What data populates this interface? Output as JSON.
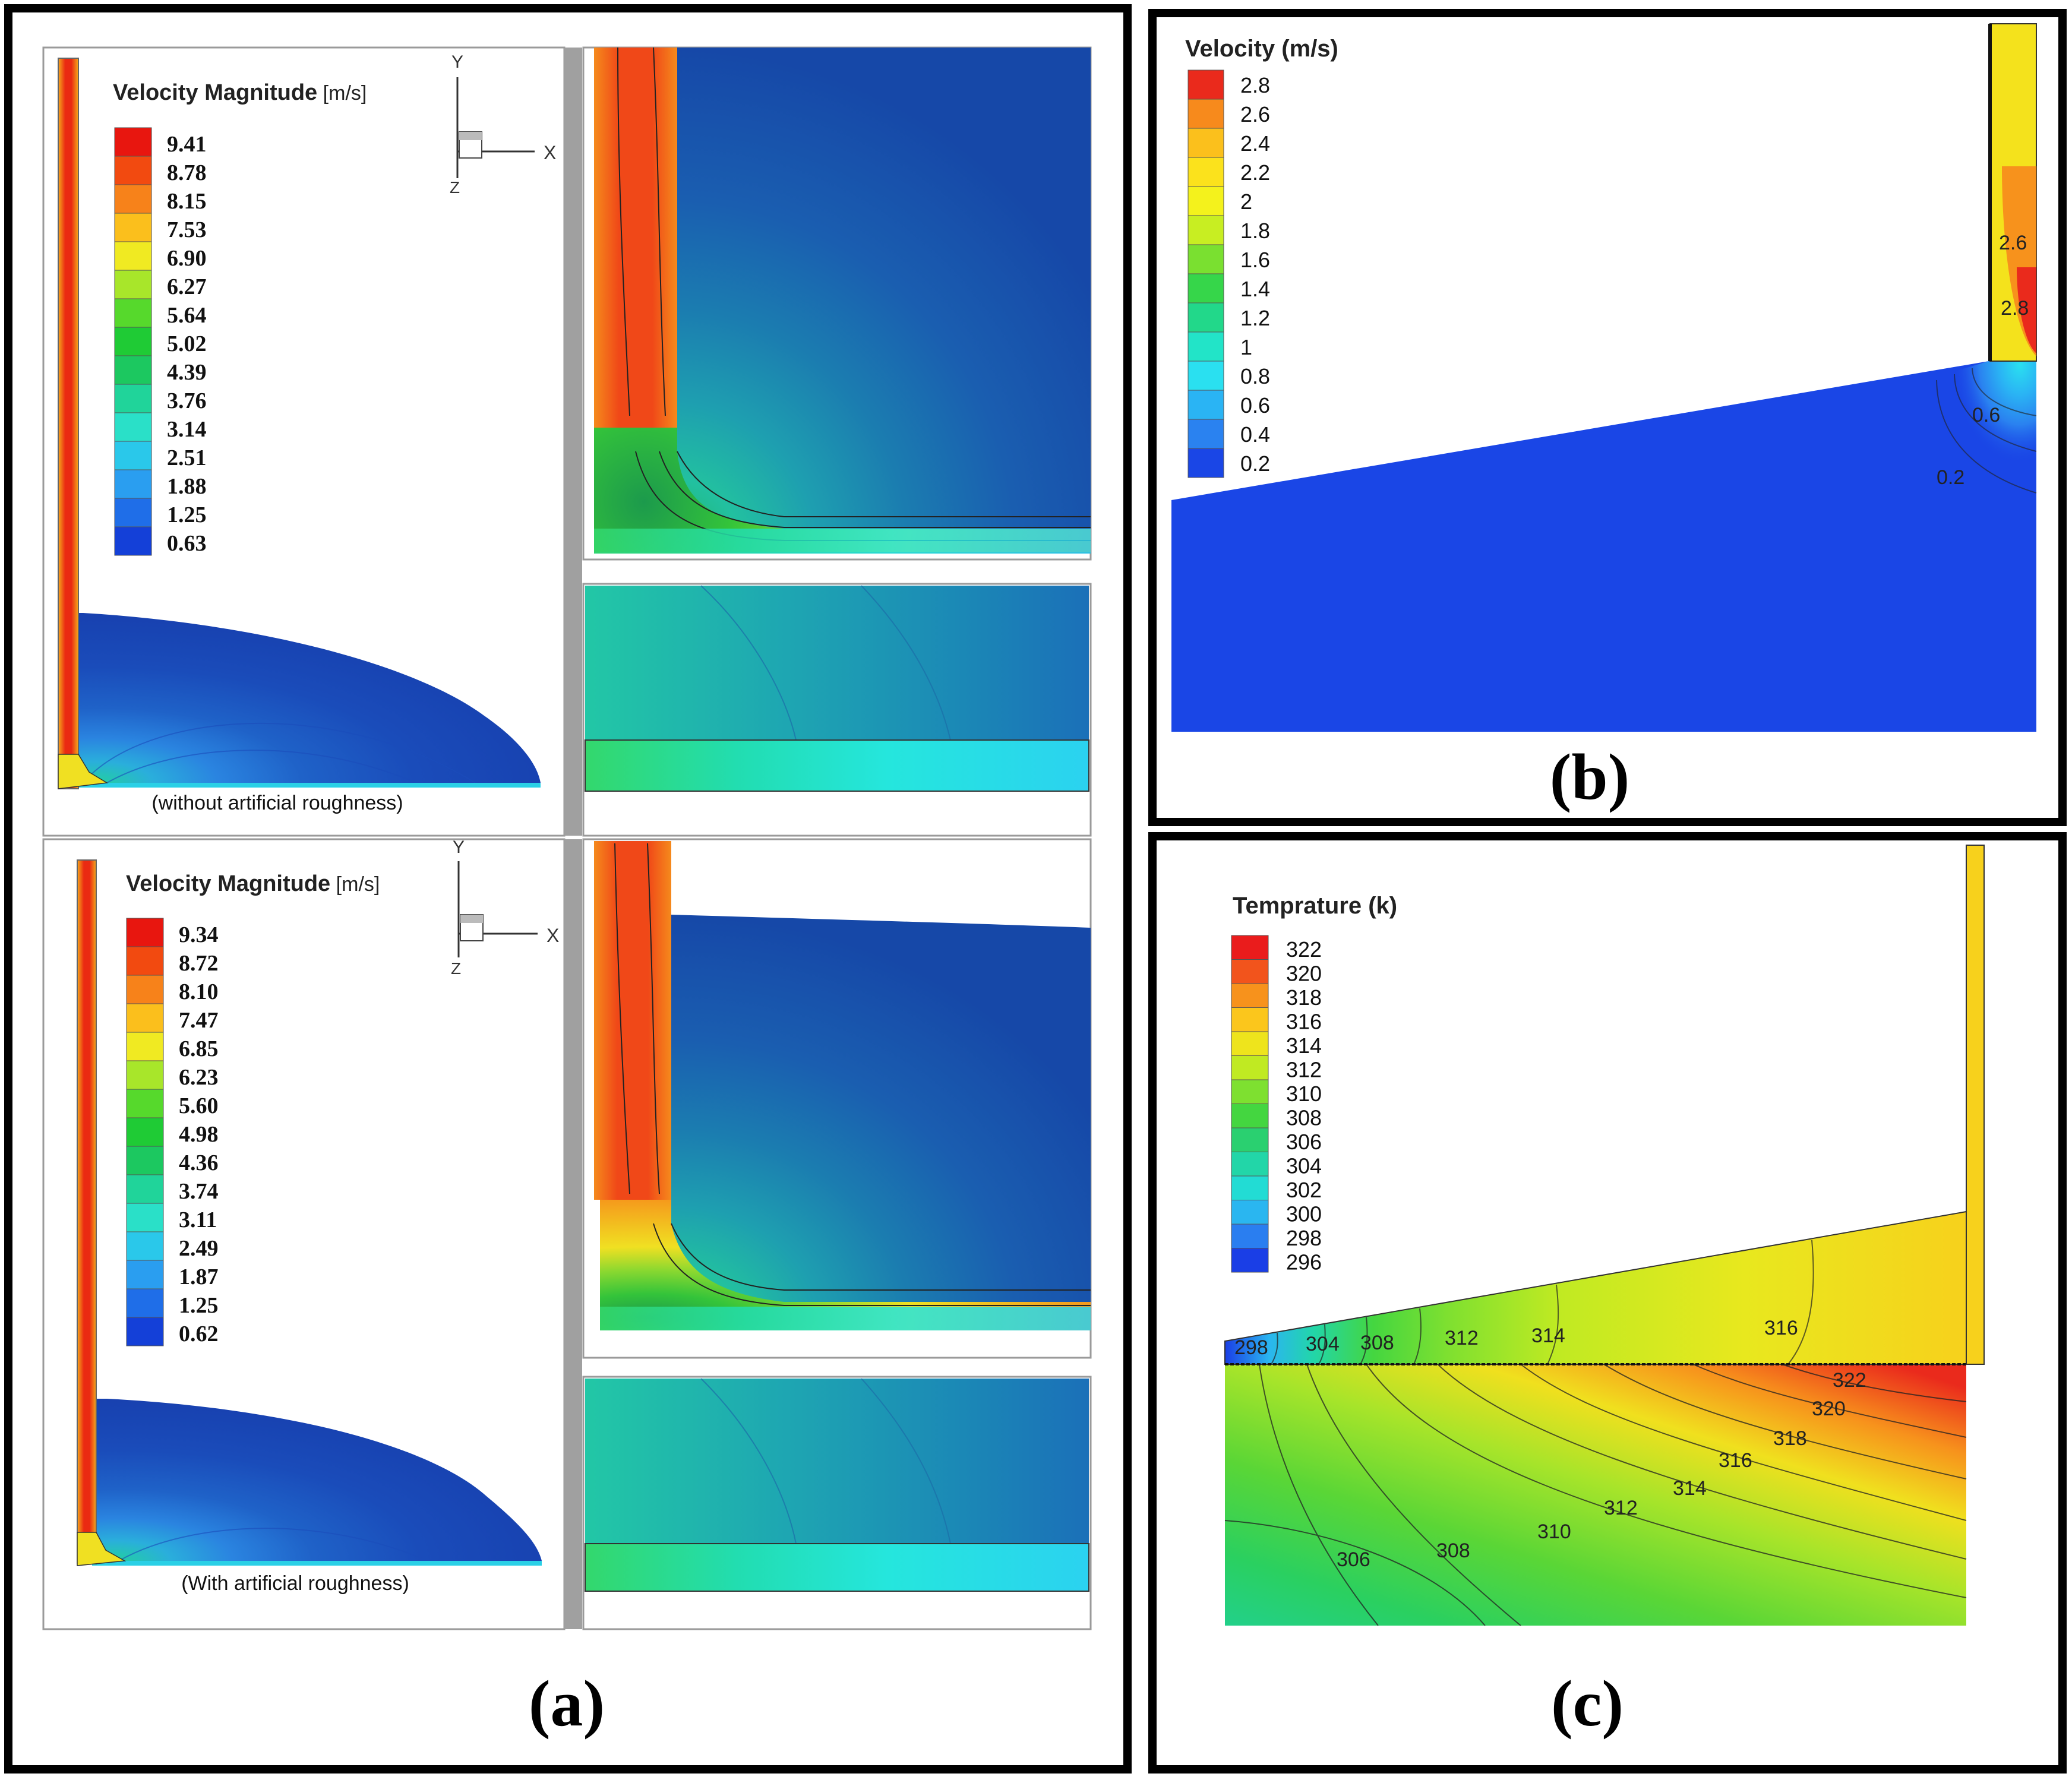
{
  "panel_a": {
    "label": "(a)",
    "top": {
      "legend_title": "Velocity Magnitude",
      "legend_unit": "[m/s]",
      "legend_values": [
        "9.41",
        "8.78",
        "8.15",
        "7.53",
        "6.90",
        "6.27",
        "5.64",
        "5.02",
        "4.39",
        "3.76",
        "3.14",
        "2.51",
        "1.88",
        "1.25",
        "0.63"
      ],
      "caption": "(without artificial roughness)",
      "axis_y": "Y",
      "axis_x": "X",
      "axis_z": "Z"
    },
    "bottom": {
      "legend_title": "Velocity Magnitude",
      "legend_unit": "[m/s]",
      "legend_values": [
        "9.34",
        "8.72",
        "8.10",
        "7.47",
        "6.85",
        "6.23",
        "5.60",
        "4.98",
        "4.36",
        "3.74",
        "3.11",
        "2.49",
        "1.87",
        "1.25",
        "0.62"
      ],
      "caption": "(With artificial roughness)",
      "axis_y": "Y",
      "axis_x": "X",
      "axis_z": "Z"
    },
    "legend_colors": [
      "#e8160f",
      "#f24a10",
      "#f7821a",
      "#fbbf1c",
      "#f0ea22",
      "#a8e62a",
      "#56d92c",
      "#1fcb35",
      "#1cc860",
      "#20d49a",
      "#2ae0c8",
      "#2ac8ea",
      "#2a9ef0",
      "#1f6ee8",
      "#1440d8"
    ]
  },
  "panel_b": {
    "label": "(b)",
    "legend_title": "Velocity (m/s)",
    "legend_values": [
      "2.8",
      "2.6",
      "2.4",
      "2.2",
      "2",
      "1.8",
      "1.6",
      "1.4",
      "1.2",
      "1",
      "0.8",
      "0.6",
      "0.4",
      "0.2"
    ],
    "legend_colors": [
      "#ea2a1c",
      "#f78a1c",
      "#fbc01c",
      "#fbe21c",
      "#f4f21c",
      "#c8ee22",
      "#7ae030",
      "#36d64a",
      "#22d88a",
      "#22e4c8",
      "#2ae0f0",
      "#2ab4f4",
      "#2a82f0",
      "#1a46e6"
    ],
    "contour_labels": [
      "2.6",
      "2.8",
      "0.6",
      "0.2"
    ]
  },
  "panel_c": {
    "label": "(c)",
    "legend_title": "Temprature (k)",
    "legend_values": [
      "322",
      "320",
      "318",
      "316",
      "314",
      "312",
      "310",
      "308",
      "306",
      "304",
      "302",
      "300",
      "298",
      "296"
    ],
    "legend_colors": [
      "#ea1c1c",
      "#f2541c",
      "#f7921c",
      "#fbc61c",
      "#eee41c",
      "#c0ea22",
      "#7ee030",
      "#44d640",
      "#2ad070",
      "#22d6a8",
      "#22dcd4",
      "#2ab6f0",
      "#2a7ef0",
      "#1a3ee6"
    ],
    "contour_labels_upper": [
      "298",
      "304",
      "308",
      "312",
      "314",
      "316"
    ],
    "contour_labels_lower": [
      "322",
      "320",
      "318",
      "316",
      "314",
      "312",
      "310",
      "308",
      "306"
    ]
  }
}
